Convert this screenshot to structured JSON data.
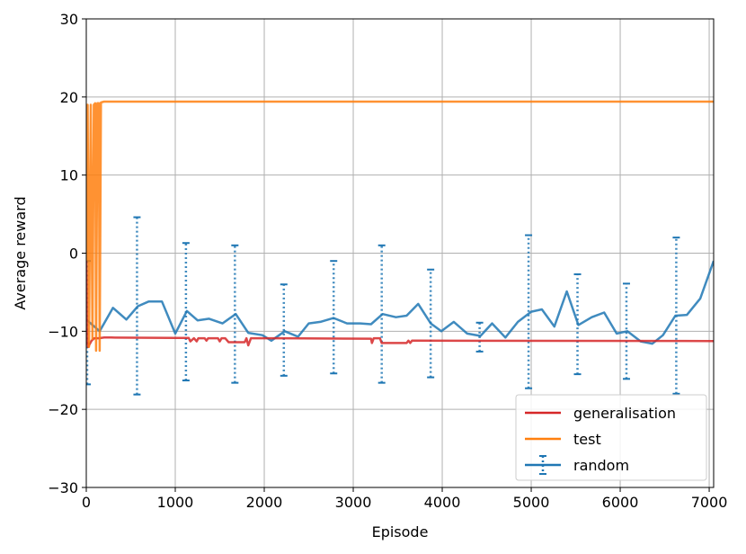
{
  "chart_data": {
    "type": "line",
    "title": "",
    "xlabel": "Episode",
    "ylabel": "Average reward",
    "xlim": [
      0,
      7050
    ],
    "ylim": [
      -30,
      30
    ],
    "xticks": [
      0,
      1000,
      2000,
      3000,
      4000,
      5000,
      6000,
      7000
    ],
    "yticks": [
      -30,
      -20,
      -10,
      0,
      10,
      20,
      30
    ],
    "xtick_labels": [
      "0",
      "1000",
      "2000",
      "3000",
      "4000",
      "5000",
      "6000",
      "7000"
    ],
    "ytick_labels": [
      "−30",
      "−20",
      "−10",
      "0",
      "10",
      "20",
      "30"
    ],
    "grid": true,
    "legend_position": "bottom-right",
    "colors": {
      "generalisation": "#d62728",
      "test": "#ff7f0e",
      "random": "#1f77b4"
    },
    "series": [
      {
        "name": "generalisation",
        "values_xy": [
          [
            0,
            -1.0
          ],
          [
            10,
            -11.0
          ],
          [
            20,
            -12.0
          ],
          [
            40,
            -11.6
          ],
          [
            60,
            -11.2
          ],
          [
            90,
            -10.9
          ],
          [
            140,
            -10.9
          ],
          [
            200,
            -10.8
          ],
          [
            280,
            -10.8
          ],
          [
            1000,
            -10.85
          ],
          [
            1150,
            -10.85
          ],
          [
            1170,
            -11.3
          ],
          [
            1210,
            -10.9
          ],
          [
            1240,
            -11.3
          ],
          [
            1260,
            -10.9
          ],
          [
            1330,
            -10.9
          ],
          [
            1350,
            -11.2
          ],
          [
            1370,
            -10.9
          ],
          [
            1480,
            -10.9
          ],
          [
            1500,
            -11.3
          ],
          [
            1520,
            -10.9
          ],
          [
            1560,
            -10.9
          ],
          [
            1600,
            -11.4
          ],
          [
            1780,
            -11.4
          ],
          [
            1800,
            -10.9
          ],
          [
            1820,
            -11.8
          ],
          [
            1850,
            -10.9
          ],
          [
            1880,
            -10.9
          ],
          [
            2200,
            -10.9
          ],
          [
            3200,
            -10.95
          ],
          [
            3210,
            -11.5
          ],
          [
            3230,
            -10.9
          ],
          [
            3300,
            -10.9
          ],
          [
            3320,
            -11.5
          ],
          [
            3600,
            -11.5
          ],
          [
            3620,
            -11.2
          ],
          [
            3640,
            -11.5
          ],
          [
            3660,
            -11.2
          ],
          [
            3700,
            -11.2
          ],
          [
            7050,
            -11.25
          ]
        ]
      },
      {
        "name": "test",
        "values_xy": [
          [
            0,
            -1.0
          ],
          [
            15,
            19.0
          ],
          [
            30,
            -12.0
          ],
          [
            50,
            19.0
          ],
          [
            70,
            -11.0
          ],
          [
            85,
            19.0
          ],
          [
            100,
            19.2
          ],
          [
            110,
            -12.5
          ],
          [
            125,
            19.2
          ],
          [
            140,
            19.2
          ],
          [
            150,
            -12.5
          ],
          [
            165,
            19.3
          ],
          [
            200,
            19.4
          ],
          [
            300,
            19.4
          ],
          [
            7050,
            19.4
          ]
        ]
      },
      {
        "name": "random",
        "values_xy": [
          [
            0,
            -8.5
          ],
          [
            150,
            -10.0
          ],
          [
            300,
            -7.0
          ],
          [
            450,
            -8.5
          ],
          [
            580,
            -6.8
          ],
          [
            700,
            -6.2
          ],
          [
            850,
            -6.2
          ],
          [
            1000,
            -10.3
          ],
          [
            1130,
            -7.4
          ],
          [
            1250,
            -8.6
          ],
          [
            1380,
            -8.4
          ],
          [
            1530,
            -9.0
          ],
          [
            1680,
            -7.8
          ],
          [
            1820,
            -10.2
          ],
          [
            1980,
            -10.5
          ],
          [
            2080,
            -11.2
          ],
          [
            2230,
            -10.0
          ],
          [
            2380,
            -10.7
          ],
          [
            2500,
            -9.0
          ],
          [
            2630,
            -8.8
          ],
          [
            2780,
            -8.3
          ],
          [
            2930,
            -9.0
          ],
          [
            3080,
            -9.0
          ],
          [
            3200,
            -9.1
          ],
          [
            3330,
            -7.8
          ],
          [
            3480,
            -8.2
          ],
          [
            3600,
            -8.0
          ],
          [
            3730,
            -6.5
          ],
          [
            3870,
            -9.0
          ],
          [
            3990,
            -10.0
          ],
          [
            4130,
            -8.8
          ],
          [
            4280,
            -10.3
          ],
          [
            4430,
            -10.6
          ],
          [
            4560,
            -9.0
          ],
          [
            4710,
            -10.8
          ],
          [
            4850,
            -8.8
          ],
          [
            5000,
            -7.5
          ],
          [
            5120,
            -7.2
          ],
          [
            5260,
            -9.4
          ],
          [
            5400,
            -4.9
          ],
          [
            5530,
            -9.2
          ],
          [
            5680,
            -8.2
          ],
          [
            5820,
            -7.6
          ],
          [
            5960,
            -10.3
          ],
          [
            6080,
            -10.0
          ],
          [
            6230,
            -11.3
          ],
          [
            6360,
            -11.6
          ],
          [
            6480,
            -10.5
          ],
          [
            6620,
            -8.0
          ],
          [
            6750,
            -7.9
          ],
          [
            6900,
            -5.8
          ],
          [
            7050,
            -1.0
          ]
        ],
        "error_bars": [
          {
            "x": 10,
            "low": -16.8,
            "high": -1.0
          },
          {
            "x": 570,
            "low": -18.1,
            "high": 4.6
          },
          {
            "x": 1120,
            "low": -16.3,
            "high": 1.3
          },
          {
            "x": 1670,
            "low": -16.6,
            "high": 1.0
          },
          {
            "x": 2220,
            "low": -15.7,
            "high": -4.0
          },
          {
            "x": 2780,
            "low": -15.4,
            "high": -1.0
          },
          {
            "x": 3320,
            "low": -16.6,
            "high": 1.0
          },
          {
            "x": 3870,
            "low": -15.9,
            "high": -2.1
          },
          {
            "x": 4420,
            "low": -12.6,
            "high": -8.9
          },
          {
            "x": 4970,
            "low": -17.3,
            "high": 2.3
          },
          {
            "x": 5520,
            "low": -15.5,
            "high": -2.7
          },
          {
            "x": 6070,
            "low": -16.1,
            "high": -3.9
          },
          {
            "x": 6630,
            "low": -18.0,
            "high": 2.0
          }
        ]
      }
    ]
  }
}
